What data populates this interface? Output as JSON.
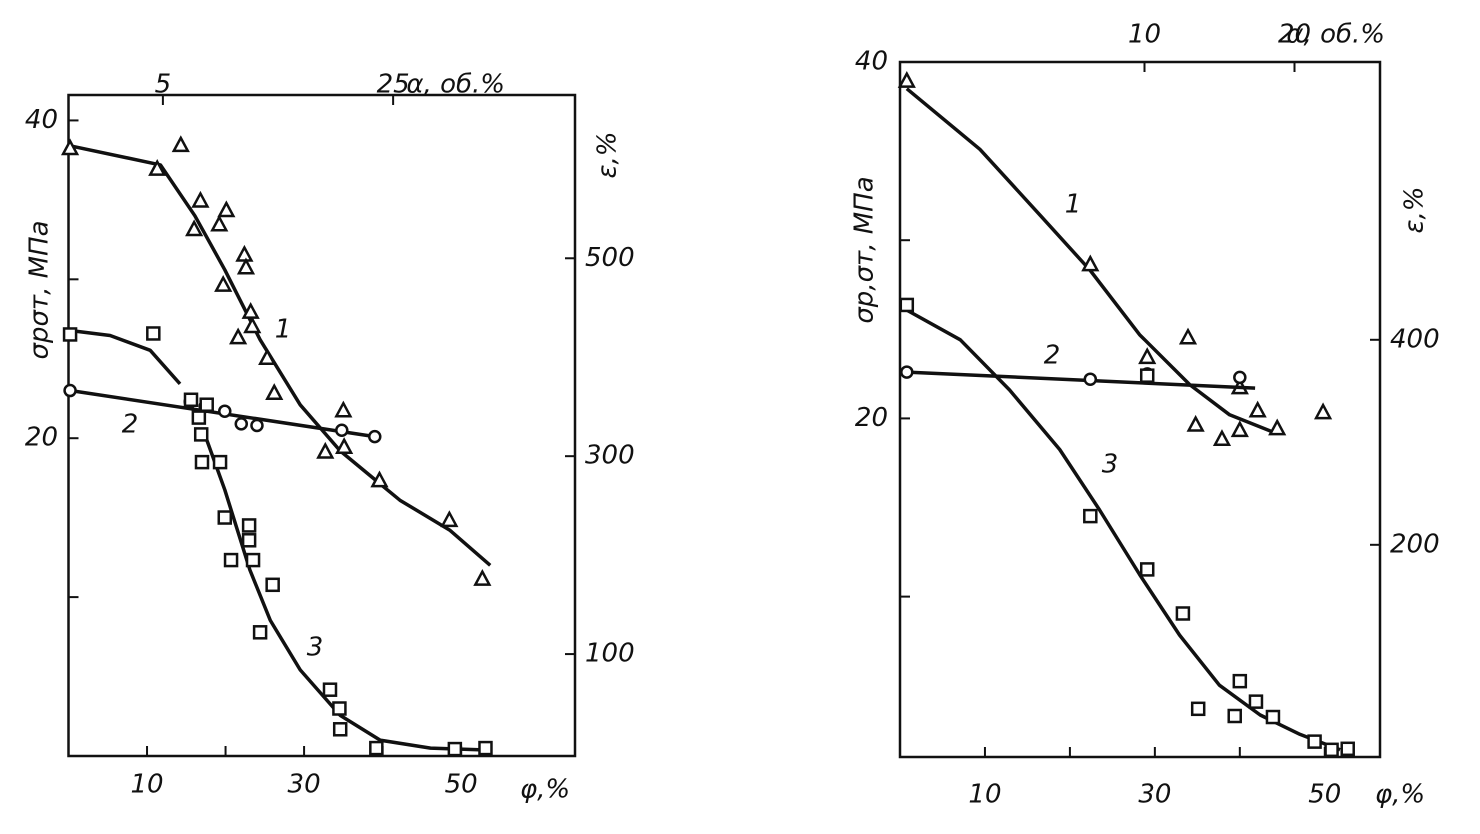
{
  "chart_data": [
    {
      "type": "scatter",
      "ylabel": "σрσт, МПа",
      "y2label": "ε,%",
      "xlabel": "φ,%",
      "x2label": "α, об.%",
      "xlim": [
        0,
        64.5
      ],
      "xticks": [
        10,
        30,
        50
      ],
      "xminor": [
        20,
        40
      ],
      "x2lim": [
        -3.2,
        40.8
      ],
      "x2ticks": [
        5,
        25
      ],
      "ylim": [
        0,
        41.6
      ],
      "yticks": [
        20,
        40
      ],
      "yminor": [
        10,
        30
      ],
      "y2lim": [
        -3,
        665
      ],
      "y2ticks": [
        100,
        300,
        500
      ],
      "series": [
        {
          "name": "1",
          "marker": "triangle",
          "axis": "y",
          "x": [
            0.2,
            11.3,
            14.3,
            16.8,
            16.0,
            19.2,
            20.1,
            22.4,
            22.6,
            19.7,
            23.2,
            23.4,
            21.6,
            25.3,
            26.2,
            35.0,
            32.7,
            35.1,
            39.6,
            48.5,
            52.7
          ],
          "values": [
            38.2,
            36.9,
            38.4,
            34.9,
            33.1,
            33.4,
            34.3,
            31.5,
            30.7,
            29.6,
            27.9,
            27.0,
            26.3,
            25.0,
            22.8,
            21.7,
            19.1,
            19.4,
            17.3,
            14.8,
            11.1
          ],
          "curve": {
            "x": [
              0.2,
              11.7,
              16.1,
              19.9,
              24.4,
              29.5,
              34.6,
              42.2,
              48.6,
              53.7
            ],
            "values": [
              38.4,
              37.2,
              34.0,
              30.6,
              26.2,
              22.1,
              19.2,
              16.1,
              14.2,
              12.0
            ]
          }
        },
        {
          "name": "2",
          "marker": "circle",
          "axis": "y",
          "x": [
            0.2,
            15.5,
            17.4,
            19.9,
            22.0,
            24.0,
            34.8,
            39.0
          ],
          "values": [
            23.0,
            22.3,
            22.0,
            21.7,
            20.9,
            20.8,
            20.5,
            20.1
          ],
          "curve": {
            "x": [
              0.2,
              39.0
            ],
            "values": [
              23.0,
              20.1
            ]
          }
        },
        {
          "name": "3",
          "marker": "square",
          "axis": "y2",
          "x": [
            0.2,
            10.8,
            15.6,
            16.6,
            17.6,
            16.9,
            17.0,
            19.3,
            19.9,
            20.7,
            23.0,
            23.0,
            23.5,
            26.0,
            24.4,
            33.3,
            34.5,
            34.6,
            39.2,
            49.2,
            53.1
          ],
          "values": [
            423,
            424,
            357,
            339,
            352,
            322,
            294,
            294,
            238,
            195,
            230,
            215,
            195,
            170,
            122,
            64,
            45,
            24,
            5,
            4,
            5
          ],
          "curve": {
            "x": [
              0.2,
              5.3,
              10.4,
              14.2,
              null,
              17.4,
              19.9,
              23.1,
              25.7,
              29.5,
              34.6,
              39.7,
              46.1,
              53.7
            ],
            "values": [
              427,
              422,
              407,
              373,
              null,
              321,
              266,
              185,
              134,
              84,
              38,
              13,
              5,
              3
            ]
          }
        }
      ]
    },
    {
      "type": "scatter",
      "ylabel": "σр,σт, МПа",
      "y2label": "ε,%",
      "xlabel": "φ,%",
      "x2label": "α, об.%",
      "xlim": [
        0,
        56.5
      ],
      "xticks": [
        10,
        30,
        50
      ],
      "xminor": [
        20,
        40
      ],
      "x2lim": [
        -6.3,
        25.7
      ],
      "x2ticks": [
        10,
        20
      ],
      "ylim": [
        1,
        40
      ],
      "yticks": [
        20,
        40
      ],
      "yminor": [
        10,
        30
      ],
      "y2lim": [
        -7,
        671
      ],
      "y2ticks": [
        200,
        400
      ],
      "series": [
        {
          "name": "1",
          "marker": "triangle",
          "axis": "y",
          "x": [
            0.8,
            22.4,
            29.1,
            33.9,
            40.0,
            34.8,
            42.1,
            37.9,
            40.0,
            44.4,
            49.8
          ],
          "values": [
            38.9,
            28.6,
            23.4,
            24.5,
            21.7,
            19.6,
            20.4,
            18.8,
            19.3,
            19.4,
            20.3
          ],
          "curve": {
            "x": [
              0.8,
              9.4,
              16.5,
              22.4,
              28.2,
              34.1,
              38.8,
              44.1
            ],
            "values": [
              38.5,
              35.1,
              31.4,
              28.3,
              24.7,
              21.9,
              20.2,
              19.2
            ]
          }
        },
        {
          "name": "2",
          "marker": "circle",
          "axis": "y",
          "x": [
            0.8,
            22.4,
            29.1,
            40.0
          ],
          "values": [
            22.6,
            22.2,
            22.5,
            22.3
          ],
          "curve": {
            "x": [
              0.8,
              41.8
            ],
            "values": [
              22.6,
              21.7
            ]
          }
        },
        {
          "name": "3",
          "marker": "square",
          "axis": "y2",
          "x": [
            0.8,
            29.1,
            22.4,
            29.1,
            33.3,
            40.0,
            41.9,
            35.1,
            39.4,
            43.9,
            48.8,
            50.8,
            52.7
          ],
          "values": [
            434,
            365,
            228,
            176,
            133,
            67,
            47,
            40,
            33,
            32,
            8,
            0,
            1
          ],
          "curve": {
            "x": [
              0.8,
              7.1,
              12.9,
              18.8,
              23.5,
              28.2,
              32.9,
              37.6,
              42.4,
              47.1,
              51.8
            ],
            "values": [
              429,
              400,
              351,
              293,
              234,
              171,
              112,
              63,
              34,
              15,
              0
            ]
          }
        }
      ]
    }
  ]
}
